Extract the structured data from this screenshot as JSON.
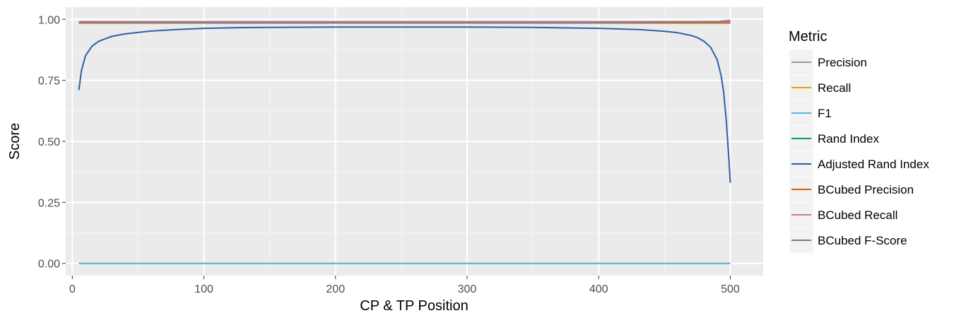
{
  "chart_data": {
    "type": "line",
    "title": "",
    "xlabel": "CP & TP Position",
    "ylabel": "Score",
    "xlim": [
      -5,
      525
    ],
    "ylim": [
      -0.05,
      1.05
    ],
    "x_ticks": [
      0,
      100,
      200,
      300,
      400,
      500
    ],
    "x_tick_labels": [
      "0",
      "100",
      "200",
      "300",
      "400",
      "500"
    ],
    "y_ticks": [
      0,
      0.25,
      0.5,
      0.75,
      1.0
    ],
    "y_tick_labels": [
      "0.00",
      "0.25",
      "0.50",
      "0.75",
      "1.00"
    ],
    "grid": true,
    "legend": {
      "title": "Metric",
      "position": "right"
    },
    "series": [
      {
        "name": "Precision",
        "color": "#999999",
        "x": [
          5,
          500
        ],
        "y": [
          0.99,
          0.99
        ]
      },
      {
        "name": "Recall",
        "color": "#E69F00",
        "x": [
          5,
          500
        ],
        "y": [
          0.0,
          0.0
        ]
      },
      {
        "name": "F1",
        "color": "#56B4E9",
        "x": [
          5,
          500
        ],
        "y": [
          0.0,
          0.0
        ]
      },
      {
        "name": "Rand Index",
        "color": "#009E73",
        "x": [
          5,
          500
        ],
        "y": [
          0.985,
          0.985
        ]
      },
      {
        "name": "Adjusted Rand Index",
        "color": "#2E5FA8",
        "x": [
          5,
          7,
          10,
          15,
          20,
          30,
          40,
          50,
          60,
          80,
          100,
          130,
          150,
          200,
          250,
          300,
          350,
          400,
          430,
          450,
          460,
          470,
          475,
          480,
          485,
          490,
          493,
          495,
          497,
          499,
          500
        ],
        "y": [
          0.71,
          0.79,
          0.85,
          0.89,
          0.91,
          0.93,
          0.94,
          0.946,
          0.952,
          0.958,
          0.963,
          0.966,
          0.967,
          0.968,
          0.968,
          0.968,
          0.967,
          0.963,
          0.958,
          0.951,
          0.945,
          0.934,
          0.925,
          0.91,
          0.886,
          0.835,
          0.77,
          0.7,
          0.58,
          0.42,
          0.33
        ]
      },
      {
        "name": "BCubed Precision",
        "color": "#D55E00",
        "x": [
          5,
          500
        ],
        "y": [
          0.985,
          0.985
        ]
      },
      {
        "name": "BCubed Recall",
        "color": "#CC79A7",
        "x": [
          5,
          500
        ],
        "y": [
          0.99,
          0.99
        ]
      },
      {
        "name": "BCubed F-Score",
        "color": "#7F7F7F",
        "x": [
          5,
          100,
          200,
          300,
          400,
          490,
          500
        ],
        "y": [
          0.988,
          0.986,
          0.986,
          0.986,
          0.986,
          0.99,
          0.996
        ]
      }
    ]
  }
}
